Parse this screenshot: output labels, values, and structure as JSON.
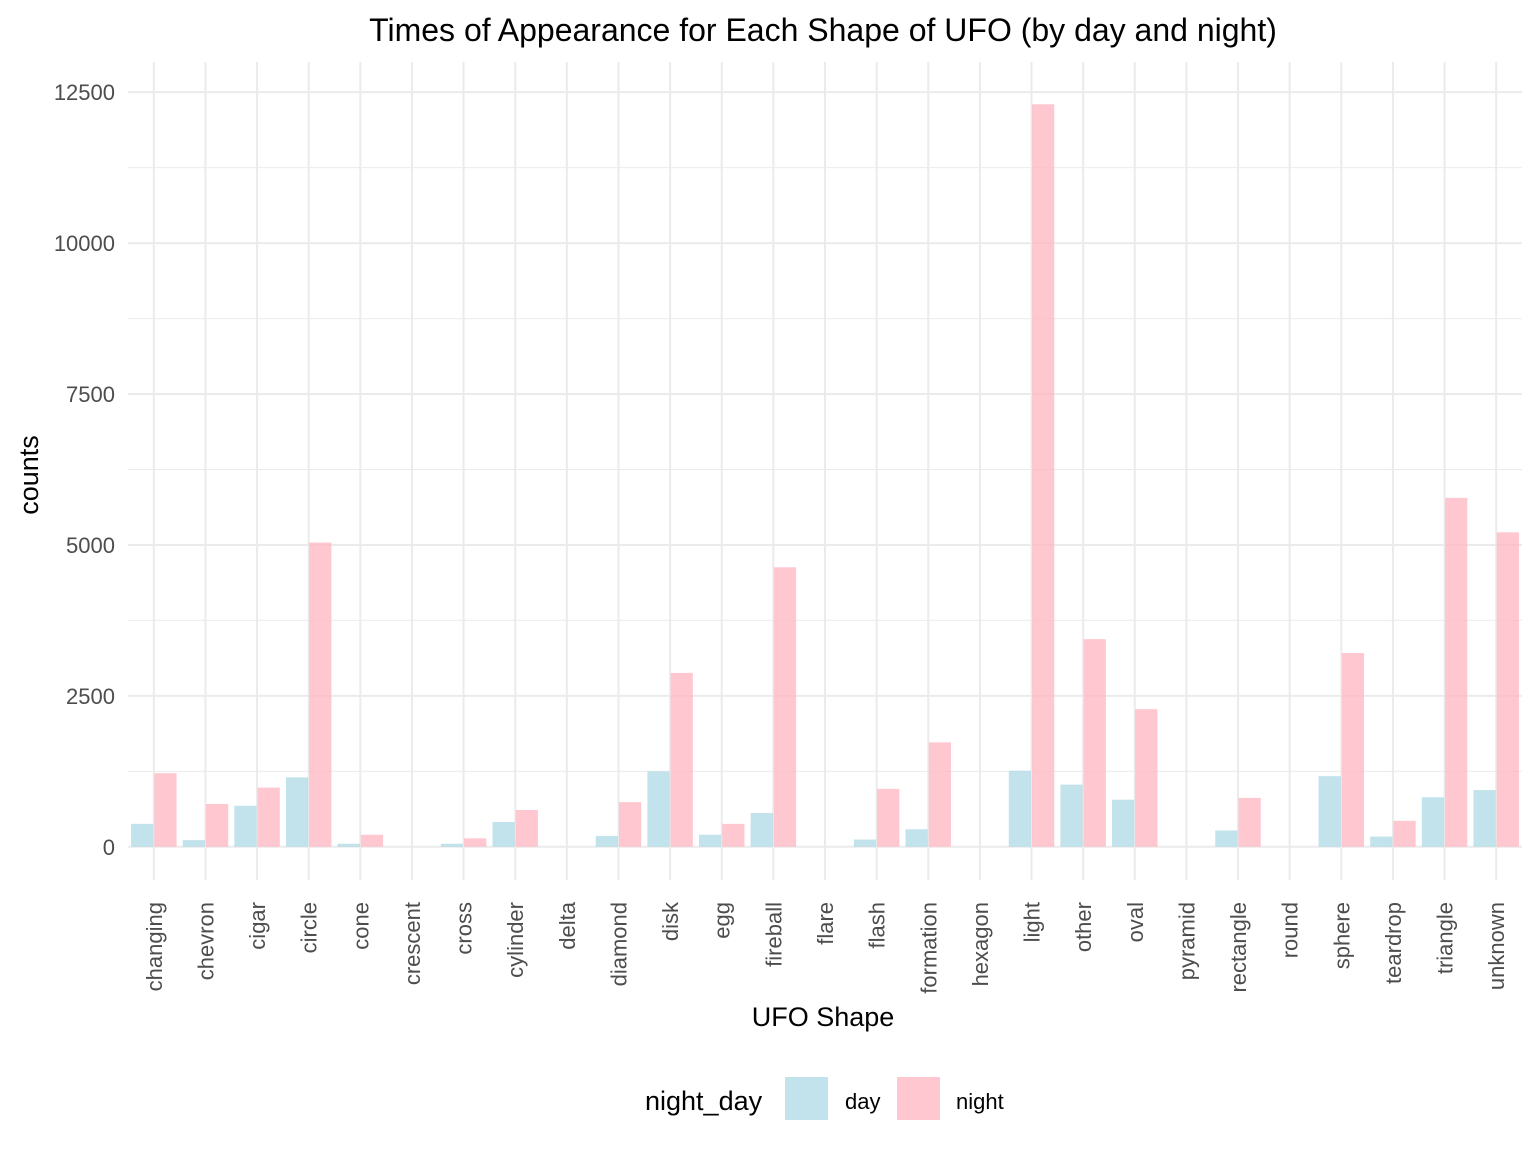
{
  "chart_data": {
    "type": "bar",
    "title": "Times of Appearance for Each Shape of UFO (by day and night)",
    "xlabel": "UFO Shape",
    "ylabel": "counts",
    "ylim": [
      -550,
      13000
    ],
    "y_ticks": [
      0,
      2500,
      5000,
      7500,
      10000,
      12500
    ],
    "y_tick_labels": [
      "0",
      "2500",
      "5000",
      "7500",
      "10000",
      "12500"
    ],
    "grid": true,
    "legend": {
      "title": "night_day",
      "position": "bottom"
    },
    "categories": [
      "changing",
      "chevron",
      "cigar",
      "circle",
      "cone",
      "crescent",
      "cross",
      "cylinder",
      "delta",
      "diamond",
      "disk",
      "egg",
      "fireball",
      "flare",
      "flash",
      "formation",
      "hexagon",
      "light",
      "other",
      "oval",
      "pyramid",
      "rectangle",
      "round",
      "sphere",
      "teardrop",
      "triangle",
      "unknown"
    ],
    "series": [
      {
        "name": "day",
        "color": "#ADD8E6",
        "values": [
          380,
          110,
          680,
          1150,
          50,
          0,
          50,
          410,
          0,
          180,
          1250,
          200,
          560,
          0,
          120,
          290,
          0,
          1260,
          1030,
          780,
          0,
          270,
          0,
          1170,
          170,
          820,
          940
        ]
      },
      {
        "name": "night",
        "color": "#FFB6C1",
        "values": [
          1220,
          710,
          980,
          5040,
          200,
          0,
          140,
          610,
          0,
          740,
          2880,
          380,
          4630,
          0,
          960,
          1730,
          0,
          12300,
          3440,
          2280,
          0,
          810,
          0,
          3210,
          430,
          5780,
          5210
        ]
      }
    ]
  }
}
